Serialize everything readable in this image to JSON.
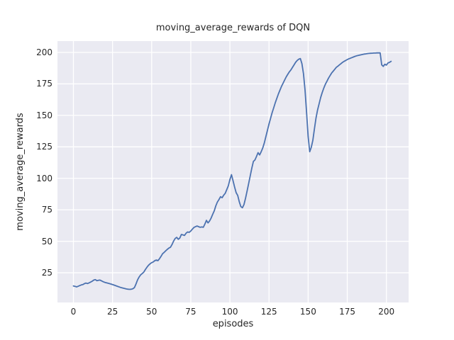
{
  "figure": {
    "title": "moving_average_rewards of DQN",
    "xlabel": "episodes",
    "ylabel": "moving_average_rewards"
  },
  "colors": {
    "plot_background": "#EAEAF2",
    "figure_background": "#ffffff",
    "gridline": "#ffffff",
    "line": "#4C72B0",
    "text": "#262626"
  },
  "chart_data": {
    "type": "line",
    "title": "moving_average_rewards of DQN",
    "xlabel": "episodes",
    "ylabel": "moving_average_rewards",
    "x_ticks": [
      0,
      25,
      50,
      75,
      100,
      125,
      150,
      175,
      200
    ],
    "y_ticks": [
      25,
      50,
      75,
      100,
      125,
      150,
      175,
      200
    ],
    "xlim": [
      -10.2,
      214.2
    ],
    "ylim": [
      1.4,
      209.0
    ],
    "grid": true,
    "legend_position": "none",
    "line_width": 1.8,
    "series": [
      {
        "name": "DQN moving average rewards",
        "color": "#4C72B0",
        "points": [
          [
            0,
            14.5
          ],
          [
            1,
            14.2
          ],
          [
            2,
            13.8
          ],
          [
            3,
            14.2
          ],
          [
            4,
            14.8
          ],
          [
            5,
            15.3
          ],
          [
            6,
            15.6
          ],
          [
            7,
            16.3
          ],
          [
            8,
            16.8
          ],
          [
            9,
            16.4
          ],
          [
            10,
            17.0
          ],
          [
            11,
            17.6
          ],
          [
            12,
            18.3
          ],
          [
            13,
            19.2
          ],
          [
            14,
            19.5
          ],
          [
            15,
            18.7
          ],
          [
            16,
            19.0
          ],
          [
            17,
            19.2
          ],
          [
            18,
            18.5
          ],
          [
            19,
            17.9
          ],
          [
            20,
            17.4
          ],
          [
            22,
            16.7
          ],
          [
            24,
            16.0
          ],
          [
            26,
            15.2
          ],
          [
            28,
            14.3
          ],
          [
            30,
            13.4
          ],
          [
            32,
            12.7
          ],
          [
            34,
            12.1
          ],
          [
            35,
            11.9
          ],
          [
            36,
            11.8
          ],
          [
            37,
            11.9
          ],
          [
            38,
            12.3
          ],
          [
            39,
            13.2
          ],
          [
            40,
            16.0
          ],
          [
            41,
            19.3
          ],
          [
            42,
            21.6
          ],
          [
            43,
            23.4
          ],
          [
            44,
            24.4
          ],
          [
            45,
            25.6
          ],
          [
            46,
            27.6
          ],
          [
            47,
            29.4
          ],
          [
            48,
            31.0
          ],
          [
            49,
            32.1
          ],
          [
            50,
            33.0
          ],
          [
            51,
            33.6
          ],
          [
            52,
            34.6
          ],
          [
            53,
            35.1
          ],
          [
            54,
            34.6
          ],
          [
            55,
            36.1
          ],
          [
            56,
            38.0
          ],
          [
            57,
            40.1
          ],
          [
            58,
            41.2
          ],
          [
            59,
            42.4
          ],
          [
            60,
            43.6
          ],
          [
            61,
            44.6
          ],
          [
            62,
            45.2
          ],
          [
            63,
            47.4
          ],
          [
            64,
            50.1
          ],
          [
            65,
            52.2
          ],
          [
            66,
            53.1
          ],
          [
            67,
            51.6
          ],
          [
            68,
            52.6
          ],
          [
            69,
            55.4
          ],
          [
            70,
            55.1
          ],
          [
            71,
            54.6
          ],
          [
            72,
            56.4
          ],
          [
            73,
            57.4
          ],
          [
            74,
            57.1
          ],
          [
            75,
            58.1
          ],
          [
            76,
            59.6
          ],
          [
            77,
            61.0
          ],
          [
            78,
            61.6
          ],
          [
            79,
            62.1
          ],
          [
            80,
            61.6
          ],
          [
            81,
            61.1
          ],
          [
            82,
            61.4
          ],
          [
            83,
            61.1
          ],
          [
            84,
            63.6
          ],
          [
            85,
            66.6
          ],
          [
            86,
            64.6
          ],
          [
            87,
            66.1
          ],
          [
            88,
            68.4
          ],
          [
            89,
            71.4
          ],
          [
            90,
            74.1
          ],
          [
            91,
            78.1
          ],
          [
            92,
            81.1
          ],
          [
            93,
            83.1
          ],
          [
            94,
            85.4
          ],
          [
            95,
            84.6
          ],
          [
            96,
            86.6
          ],
          [
            97,
            88.1
          ],
          [
            98,
            91.1
          ],
          [
            99,
            94.1
          ],
          [
            100,
            99.0
          ],
          [
            101,
            102.9
          ],
          [
            102,
            98.1
          ],
          [
            103,
            93.1
          ],
          [
            104,
            88.6
          ],
          [
            105,
            86.4
          ],
          [
            106,
            81.4
          ],
          [
            107,
            77.6
          ],
          [
            108,
            76.6
          ],
          [
            109,
            79.1
          ],
          [
            110,
            84.1
          ],
          [
            111,
            90.1
          ],
          [
            112,
            96.1
          ],
          [
            113,
            102.1
          ],
          [
            114,
            108.1
          ],
          [
            115,
            113.4
          ],
          [
            116,
            114.6
          ],
          [
            117,
            117.4
          ],
          [
            118,
            120.4
          ],
          [
            119,
            118.6
          ],
          [
            120,
            121.1
          ],
          [
            121,
            124.1
          ],
          [
            122,
            128.1
          ],
          [
            123,
            133.1
          ],
          [
            124,
            138.1
          ],
          [
            125,
            143.1
          ],
          [
            126,
            147.6
          ],
          [
            127,
            152.1
          ],
          [
            128,
            156.1
          ],
          [
            129,
            160.1
          ],
          [
            130,
            163.6
          ],
          [
            131,
            167.1
          ],
          [
            132,
            170.1
          ],
          [
            133,
            173.1
          ],
          [
            134,
            175.6
          ],
          [
            135,
            178.1
          ],
          [
            136,
            180.6
          ],
          [
            137,
            182.6
          ],
          [
            138,
            184.6
          ],
          [
            139,
            186.1
          ],
          [
            140,
            188.1
          ],
          [
            141,
            190.1
          ],
          [
            142,
            192.1
          ],
          [
            143,
            193.6
          ],
          [
            144,
            194.6
          ],
          [
            145,
            195.1
          ],
          [
            146,
            191.1
          ],
          [
            147,
            183.1
          ],
          [
            148,
            170.1
          ],
          [
            149,
            152.1
          ],
          [
            150,
            133.1
          ],
          [
            151,
            121.1
          ],
          [
            152,
            124.6
          ],
          [
            153,
            130.1
          ],
          [
            154,
            139.1
          ],
          [
            155,
            147.6
          ],
          [
            156,
            154.1
          ],
          [
            157,
            159.1
          ],
          [
            158,
            164.1
          ],
          [
            159,
            168.1
          ],
          [
            160,
            171.6
          ],
          [
            161,
            174.6
          ],
          [
            162,
            177.1
          ],
          [
            163,
            179.6
          ],
          [
            164,
            181.6
          ],
          [
            165,
            183.6
          ],
          [
            166,
            185.1
          ],
          [
            167,
            186.6
          ],
          [
            168,
            188.1
          ],
          [
            169,
            189.1
          ],
          [
            170,
            190.1
          ],
          [
            171,
            191.1
          ],
          [
            172,
            192.1
          ],
          [
            173,
            192.9
          ],
          [
            174,
            193.6
          ],
          [
            175,
            194.3
          ],
          [
            176,
            194.9
          ],
          [
            177,
            195.4
          ],
          [
            178,
            195.9
          ],
          [
            179,
            196.4
          ],
          [
            180,
            196.9
          ],
          [
            181,
            197.3
          ],
          [
            182,
            197.6
          ],
          [
            183,
            197.9
          ],
          [
            184,
            198.2
          ],
          [
            185,
            198.5
          ],
          [
            186,
            198.7
          ],
          [
            187,
            198.9
          ],
          [
            188,
            199.1
          ],
          [
            189,
            199.2
          ],
          [
            190,
            199.3
          ],
          [
            191,
            199.4
          ],
          [
            192,
            199.5
          ],
          [
            193,
            199.5
          ],
          [
            194,
            199.6
          ],
          [
            195,
            199.6
          ],
          [
            196,
            199.6
          ],
          [
            197,
            190.1
          ],
          [
            198,
            188.9
          ],
          [
            199,
            190.6
          ],
          [
            200,
            189.9
          ],
          [
            201,
            191.6
          ],
          [
            202,
            192.1
          ],
          [
            203,
            192.9
          ]
        ]
      }
    ]
  }
}
